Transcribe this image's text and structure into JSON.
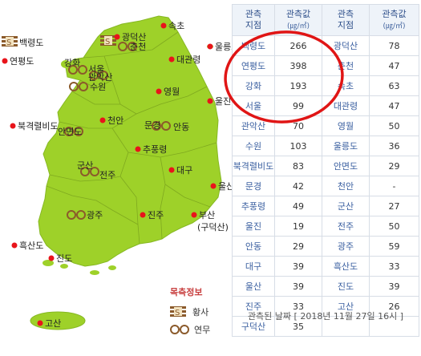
{
  "map": {
    "stations": [
      {
        "key": "sokcho",
        "label": "속초"
      },
      {
        "key": "gwangdeoksan",
        "label": "광덕산"
      },
      {
        "key": "chuncheon",
        "label": "춘천"
      },
      {
        "key": "ulleungdo",
        "label": "울릉도"
      },
      {
        "key": "baengnyeongdo",
        "label": "백령도"
      },
      {
        "key": "yeonpyeongdo",
        "label": "연평도"
      },
      {
        "key": "ganghwa",
        "label": "강화"
      },
      {
        "key": "seoul",
        "label": "서울"
      },
      {
        "key": "gwanaksan",
        "label": "관악산"
      },
      {
        "key": "suwon",
        "label": "수원"
      },
      {
        "key": "daegwallyeong",
        "label": "대관령"
      },
      {
        "key": "yeongwol",
        "label": "영월"
      },
      {
        "key": "uljin",
        "label": "울진"
      },
      {
        "key": "cheonan",
        "label": "천안"
      },
      {
        "key": "mungyeong",
        "label": "문경"
      },
      {
        "key": "andong",
        "label": "안동"
      },
      {
        "key": "bukgyeokryeolbido",
        "label": "북격렬비도"
      },
      {
        "key": "anmyeondo",
        "label": "안면도"
      },
      {
        "key": "chupungnyeong",
        "label": "추풍령"
      },
      {
        "key": "gunsan",
        "label": "군산"
      },
      {
        "key": "jeonju",
        "label": "전주"
      },
      {
        "key": "daegu",
        "label": "대구"
      },
      {
        "key": "ulsan",
        "label": "울산"
      },
      {
        "key": "gwangju",
        "label": "광주"
      },
      {
        "key": "jinju",
        "label": "진주"
      },
      {
        "key": "busan",
        "label": "부산"
      },
      {
        "key": "gudeoksan",
        "label": "(구덕산)"
      },
      {
        "key": "heuksando",
        "label": "흑산도"
      },
      {
        "key": "jindo",
        "label": "진도"
      },
      {
        "key": "gosan",
        "label": "고산"
      }
    ],
    "legend": {
      "title": "목측정보",
      "items": [
        {
          "icon": "yellow-dust-icon",
          "label": "황사"
        },
        {
          "icon": "mist-icon",
          "label": "연무"
        }
      ]
    }
  },
  "table": {
    "headers": {
      "site": "관측",
      "site2": "지점",
      "value": "관측값",
      "unit": "(㎍/㎥)"
    },
    "rows": [
      [
        {
          "n": "백령도",
          "v": "266"
        },
        {
          "n": "광덕산",
          "v": "78"
        }
      ],
      [
        {
          "n": "연평도",
          "v": "398"
        },
        {
          "n": "춘천",
          "v": "47"
        }
      ],
      [
        {
          "n": "강화",
          "v": "193"
        },
        {
          "n": "속초",
          "v": "63"
        }
      ],
      [
        {
          "n": "서울",
          "v": "99"
        },
        {
          "n": "대관령",
          "v": "47"
        }
      ],
      [
        {
          "n": "관악산",
          "v": "70"
        },
        {
          "n": "영월",
          "v": "50"
        }
      ],
      [
        {
          "n": "수원",
          "v": "103"
        },
        {
          "n": "울릉도",
          "v": "36"
        }
      ],
      [
        {
          "n": "북격렬비도",
          "v": "83"
        },
        {
          "n": "안면도",
          "v": "29"
        }
      ],
      [
        {
          "n": "문경",
          "v": "42"
        },
        {
          "n": "천안",
          "v": "-"
        }
      ],
      [
        {
          "n": "추풍령",
          "v": "49"
        },
        {
          "n": "군산",
          "v": "27"
        }
      ],
      [
        {
          "n": "울진",
          "v": "19"
        },
        {
          "n": "전주",
          "v": "50"
        }
      ],
      [
        {
          "n": "안동",
          "v": "29"
        },
        {
          "n": "광주",
          "v": "59"
        }
      ],
      [
        {
          "n": "대구",
          "v": "39"
        },
        {
          "n": "흑산도",
          "v": "33"
        }
      ],
      [
        {
          "n": "울산",
          "v": "39"
        },
        {
          "n": "진도",
          "v": "39"
        }
      ],
      [
        {
          "n": "진주",
          "v": "33"
        },
        {
          "n": "고산",
          "v": "26"
        }
      ],
      [
        {
          "n": "구덕산",
          "v": "35"
        },
        {
          "n": "",
          "v": ""
        }
      ]
    ]
  },
  "timestamp": "관측된 날짜 [ 2018년 11월 27일 16시 ]",
  "colors": {
    "land": "#9ed129",
    "land_border": "#7aa81e",
    "dot": "#e8141b",
    "highlight": "#e01515",
    "header_bg": "#eef3f9",
    "dust": "#8b5a2b"
  }
}
